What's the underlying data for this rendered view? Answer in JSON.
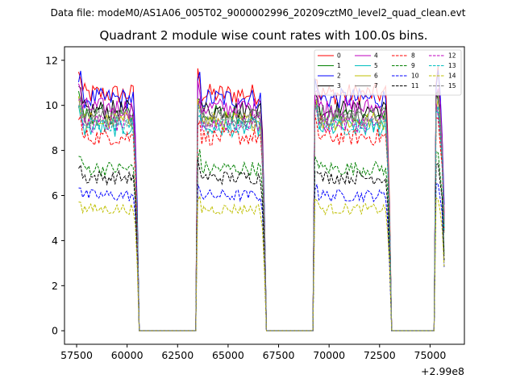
{
  "chart_data": {
    "type": "line",
    "suptitle": "Data file: modeM0/AS1A06_005T02_9000002996_20209cztM0_level2_quad_clean.evt",
    "title": "Quadrant 2 module wise count rates with 100.0s bins.",
    "xlabel": "",
    "ylabel": "",
    "x_offset_label": "+2.99e8",
    "xlim": [
      56900,
      76700
    ],
    "ylim": [
      -0.6,
      12.6
    ],
    "x_ticks": [
      57500,
      60000,
      62500,
      65000,
      67500,
      70000,
      72500,
      75000
    ],
    "x_tick_labels": [
      "57500",
      "60000",
      "62500",
      "65000",
      "67500",
      "70000",
      "72500",
      "75000"
    ],
    "y_ticks": [
      0,
      2,
      4,
      6,
      8,
      10,
      12
    ],
    "y_tick_labels": [
      "0",
      "2",
      "4",
      "6",
      "8",
      "10",
      "12"
    ],
    "legend_position": "upper right",
    "segments": [
      {
        "start": 57600,
        "end": 60500
      },
      {
        "start": 63500,
        "end": 66800
      },
      {
        "start": 69300,
        "end": 73000
      },
      {
        "start": 75300,
        "end": 75700
      }
    ],
    "gaps_value": 0,
    "series": [
      {
        "name": "0",
        "color": "#ff0000",
        "dash": "solid",
        "level": 10.5
      },
      {
        "name": "1",
        "color": "#008000",
        "dash": "solid",
        "level": 9.6
      },
      {
        "name": "2",
        "color": "#0000ff",
        "dash": "solid",
        "level": 10.3
      },
      {
        "name": "3",
        "color": "#000000",
        "dash": "solid",
        "level": 9.8
      },
      {
        "name": "4",
        "color": "#bf00bf",
        "dash": "solid",
        "level": 9.9
      },
      {
        "name": "5",
        "color": "#00bfbf",
        "dash": "solid",
        "level": 9.0
      },
      {
        "name": "6",
        "color": "#bfbf00",
        "dash": "solid",
        "level": 9.3
      },
      {
        "name": "7",
        "color": "#808080",
        "dash": "solid",
        "level": 9.5
      },
      {
        "name": "8",
        "color": "#ff0000",
        "dash": "dashed",
        "level": 8.6
      },
      {
        "name": "9",
        "color": "#008000",
        "dash": "dashed",
        "level": 7.2
      },
      {
        "name": "10",
        "color": "#0000ff",
        "dash": "dashed",
        "level": 6.0
      },
      {
        "name": "11",
        "color": "#000000",
        "dash": "dashed",
        "level": 6.8
      },
      {
        "name": "12",
        "color": "#bf00bf",
        "dash": "dashed",
        "level": 9.2
      },
      {
        "name": "13",
        "color": "#00bfbf",
        "dash": "dashed",
        "level": 9.1
      },
      {
        "name": "14",
        "color": "#bfbf00",
        "dash": "dashed",
        "level": 5.4
      },
      {
        "name": "15",
        "color": "#808080",
        "dash": "dashed",
        "level": 9.4
      }
    ]
  }
}
